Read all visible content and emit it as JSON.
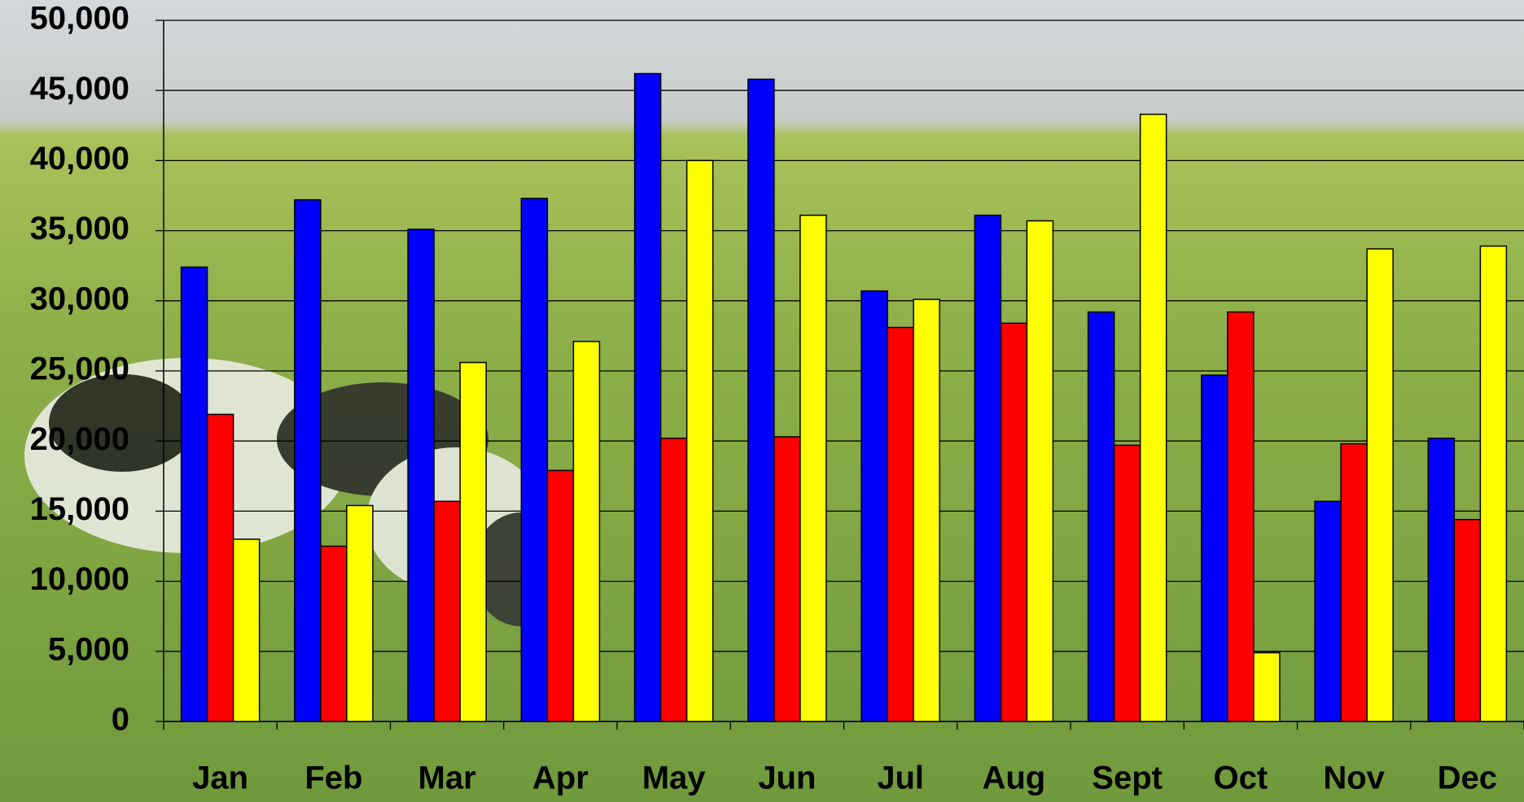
{
  "chart_data": {
    "type": "bar",
    "categories": [
      "Jan",
      "Feb",
      "Mar",
      "Apr",
      "May",
      "Jun",
      "Jul",
      "Aug",
      "Sept",
      "Oct",
      "Nov",
      "Dec"
    ],
    "series": [
      {
        "color": "#0000ff",
        "values": [
          32400,
          37200,
          35100,
          37300,
          46200,
          45800,
          30700,
          36100,
          29200,
          24700,
          15700,
          20200
        ]
      },
      {
        "color": "#ff0000",
        "values": [
          21900,
          12500,
          15700,
          17900,
          20200,
          20300,
          28100,
          28400,
          19700,
          29200,
          19800,
          14400
        ]
      },
      {
        "color": "#ffff00",
        "values": [
          13000,
          15400,
          25600,
          27100,
          40000,
          36100,
          30100,
          35700,
          43300,
          4900,
          33700,
          33900
        ]
      }
    ],
    "ylim": [
      0,
      50000
    ],
    "yticks": [
      0,
      {
        "value": 5000,
        "label": "5,000"
      },
      {
        "value": 10000,
        "label": "10,000"
      },
      {
        "value": 15000,
        "label": "15,000"
      },
      {
        "value": 20000,
        "label": "20,000"
      },
      {
        "value": 25000,
        "label": "25,000"
      },
      {
        "value": 30000,
        "label": "30,000"
      },
      {
        "value": 35000,
        "label": "35,000"
      },
      {
        "value": 40000,
        "label": "40,000"
      },
      {
        "value": 45000,
        "label": "45,000"
      },
      {
        "value": 50000,
        "label": "50,000"
      }
    ],
    "grid": true
  }
}
